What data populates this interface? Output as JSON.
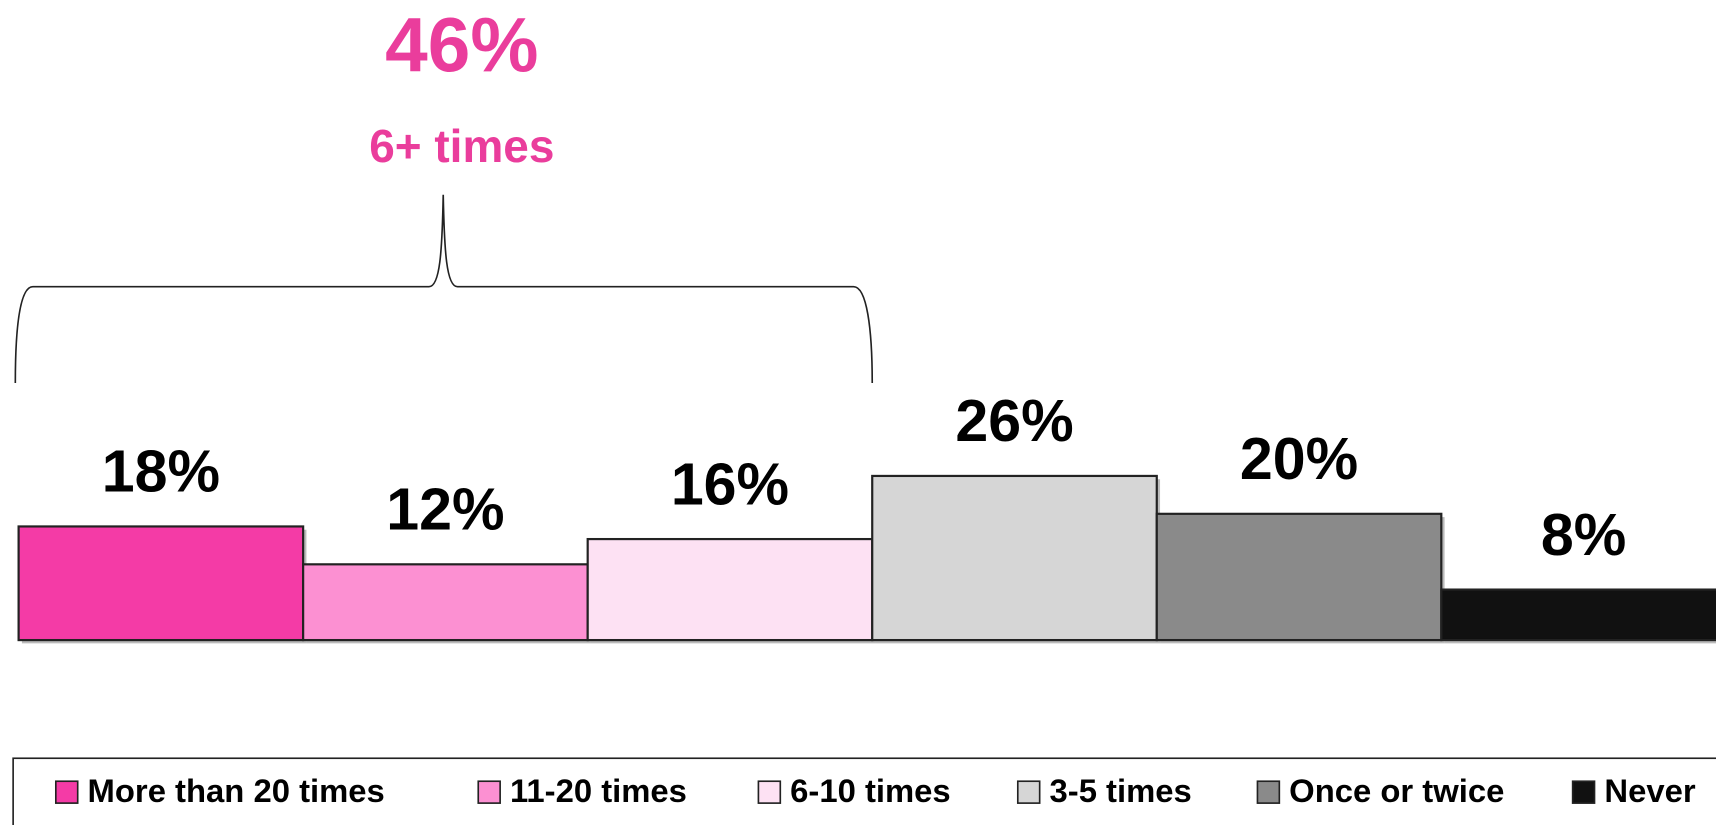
{
  "chart_data": {
    "type": "bar",
    "categories": [
      "More than 20 times",
      "11-20 times",
      "6-10 times",
      "3-5 times",
      "Once or twice",
      "Never"
    ],
    "values": [
      18,
      12,
      16,
      26,
      20,
      8
    ],
    "value_labels": [
      "18%",
      "12%",
      "16%",
      "26%",
      "20%",
      "8%"
    ],
    "colors": [
      "#f43ba6",
      "#fc90d2",
      "#fde1f3",
      "#d6d6d6",
      "#8a8a8a",
      "#111111"
    ],
    "ylim": [
      0,
      100
    ],
    "legend": "bottom",
    "annotation": {
      "value": 46,
      "label": "46%",
      "text": "6+ times",
      "color": "#ea3d9c"
    }
  }
}
